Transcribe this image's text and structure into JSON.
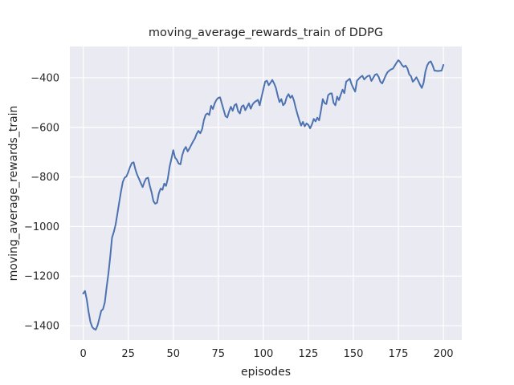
{
  "chart_data": {
    "type": "line",
    "title": "moving_average_rewards_train of DDPG",
    "xlabel": "episodes",
    "ylabel": "moving_average_rewards_train",
    "x_ticks": [
      0,
      25,
      50,
      75,
      100,
      125,
      150,
      175,
      200
    ],
    "x_tick_labels": [
      "0",
      "25",
      "50",
      "75",
      "100",
      "125",
      "150",
      "175",
      "200"
    ],
    "y_ticks": [
      -400,
      -600,
      -800,
      -1000,
      -1200,
      -1400
    ],
    "y_tick_labels": [
      "−400",
      "−600",
      "−800",
      "−1000",
      "−1200",
      "−1400"
    ],
    "xlim": [
      -7.4,
      210.2
    ],
    "ylim": [
      -1458,
      -274
    ],
    "grid": true,
    "legend": false,
    "style": "seaborn-darkgrid",
    "colors": {
      "line": "#4c72b0",
      "plot_bg": "#eaeaf2",
      "grid": "#ffffff",
      "text": "#262626",
      "figure_bg": "#ffffff"
    },
    "series": [
      {
        "name": "DDPG moving average rewards (train)",
        "x_start": 0,
        "x_step": 1,
        "values": [
          -1270,
          -1260,
          -1295,
          -1345,
          -1385,
          -1405,
          -1413,
          -1416,
          -1398,
          -1370,
          -1340,
          -1333,
          -1306,
          -1245,
          -1190,
          -1122,
          -1045,
          -1022,
          -992,
          -948,
          -902,
          -858,
          -820,
          -803,
          -798,
          -781,
          -760,
          -744,
          -741,
          -770,
          -792,
          -808,
          -825,
          -841,
          -820,
          -806,
          -803,
          -836,
          -863,
          -898,
          -908,
          -904,
          -866,
          -847,
          -852,
          -827,
          -836,
          -806,
          -758,
          -726,
          -692,
          -722,
          -731,
          -746,
          -749,
          -712,
          -690,
          -679,
          -697,
          -685,
          -671,
          -657,
          -645,
          -626,
          -614,
          -624,
          -608,
          -571,
          -549,
          -544,
          -550,
          -513,
          -526,
          -503,
          -489,
          -481,
          -479,
          -505,
          -530,
          -555,
          -560,
          -536,
          -517,
          -533,
          -511,
          -506,
          -535,
          -544,
          -516,
          -511,
          -531,
          -517,
          -503,
          -525,
          -508,
          -499,
          -494,
          -489,
          -511,
          -478,
          -447,
          -416,
          -412,
          -430,
          -420,
          -409,
          -423,
          -441,
          -472,
          -498,
          -486,
          -511,
          -503,
          -478,
          -466,
          -481,
          -472,
          -492,
          -522,
          -548,
          -572,
          -593,
          -578,
          -596,
          -584,
          -590,
          -604,
          -588,
          -566,
          -576,
          -561,
          -572,
          -532,
          -486,
          -502,
          -506,
          -470,
          -464,
          -463,
          -501,
          -511,
          -476,
          -490,
          -468,
          -448,
          -462,
          -416,
          -410,
          -404,
          -426,
          -442,
          -456,
          -412,
          -404,
          -397,
          -392,
          -407,
          -399,
          -393,
          -391,
          -413,
          -401,
          -388,
          -385,
          -396,
          -416,
          -423,
          -407,
          -390,
          -377,
          -371,
          -366,
          -363,
          -351,
          -339,
          -329,
          -337,
          -349,
          -356,
          -351,
          -362,
          -386,
          -394,
          -416,
          -408,
          -398,
          -412,
          -428,
          -441,
          -420,
          -375,
          -350,
          -338,
          -334,
          -350,
          -371,
          -372,
          -373,
          -372,
          -371,
          -348
        ]
      }
    ]
  }
}
